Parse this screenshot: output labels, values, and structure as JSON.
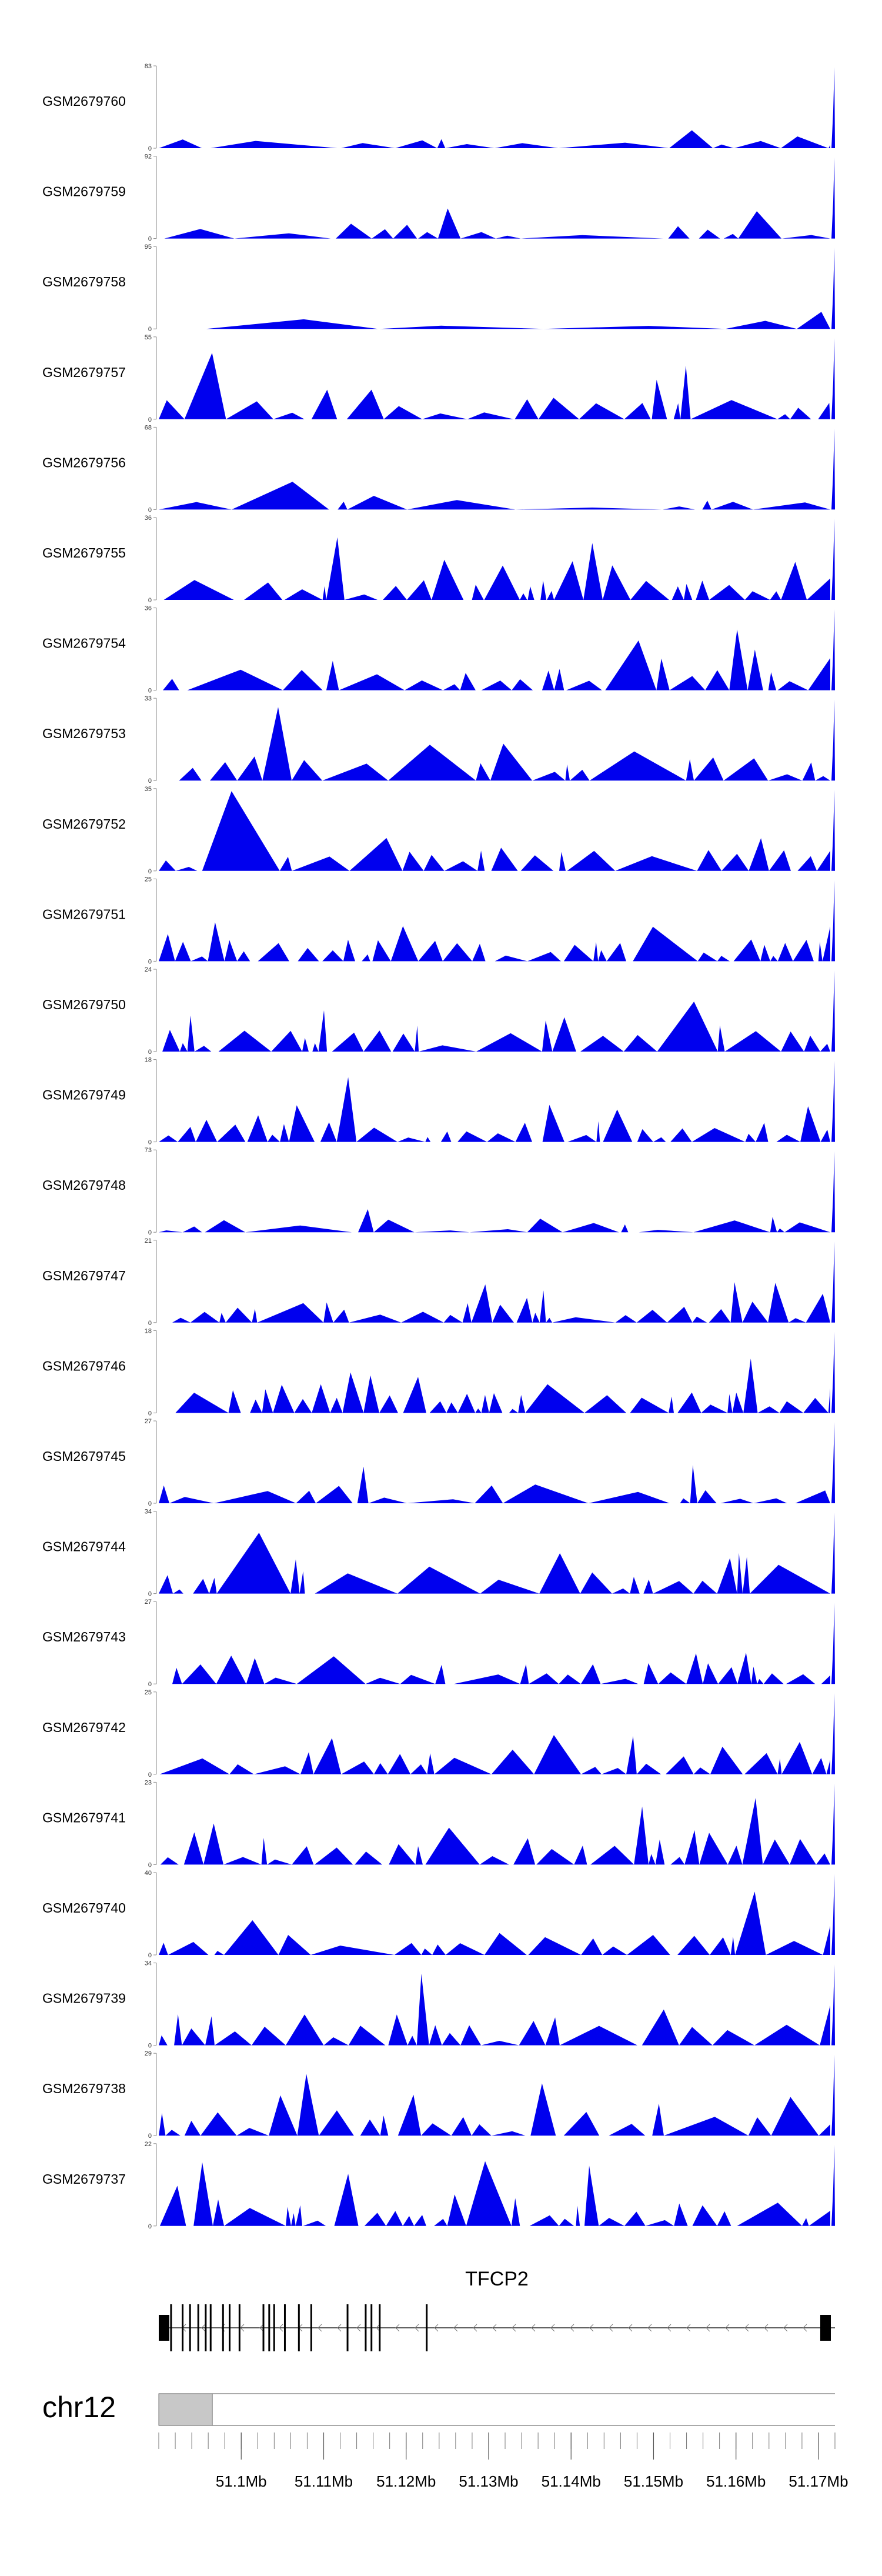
{
  "colors": {
    "signal": "#0000ee",
    "axis": "#888888",
    "gene": "#000000",
    "ideogram_fill": "#c8c8c8",
    "ideogram_edge": "#777777"
  },
  "chart_data": {
    "type": "area",
    "title": "",
    "xlabel": "",
    "ylabel": "",
    "chromosome": "chr12",
    "xlim": [
      51090000,
      51172000
    ],
    "x_ticks": [
      51100000,
      51110000,
      51120000,
      51130000,
      51140000,
      51150000,
      51160000,
      51170000
    ],
    "x_tick_labels": [
      "51.1Mb",
      "51.11Mb",
      "51.12Mb",
      "51.13Mb",
      "51.14Mb",
      "51.15Mb",
      "51.16Mb",
      "51.17Mb"
    ],
    "tracks": [
      {
        "name": "GSM2679760",
        "ymax": 83,
        "seed": 11,
        "density": 0.55,
        "spike": 83,
        "start": 0.0
      },
      {
        "name": "GSM2679759",
        "ymax": 92,
        "seed": 12,
        "density": 0.55,
        "spike": 92,
        "start": 0.0
      },
      {
        "name": "GSM2679758",
        "ymax": 95,
        "seed": 13,
        "density": 0.3,
        "spike": 95,
        "start": 0.07
      },
      {
        "name": "GSM2679757",
        "ymax": 55,
        "seed": 14,
        "density": 0.8,
        "spike": 55,
        "start": 0.0
      },
      {
        "name": "GSM2679756",
        "ymax": 68,
        "seed": 15,
        "density": 0.5,
        "spike": 68,
        "start": 0.0
      },
      {
        "name": "GSM2679755",
        "ymax": 36,
        "seed": 16,
        "density": 0.95,
        "spike": 36,
        "start": 0.0
      },
      {
        "name": "GSM2679754",
        "ymax": 36,
        "seed": 17,
        "density": 0.9,
        "spike": 36,
        "start": 0.0
      },
      {
        "name": "GSM2679753",
        "ymax": 33,
        "seed": 18,
        "density": 0.85,
        "spike": 33,
        "start": 0.03
      },
      {
        "name": "GSM2679752",
        "ymax": 35,
        "seed": 19,
        "density": 0.95,
        "spike": 35,
        "start": 0.0
      },
      {
        "name": "GSM2679751",
        "ymax": 25,
        "seed": 20,
        "density": 1.2,
        "spike": 25,
        "start": 0.0
      },
      {
        "name": "GSM2679750",
        "ymax": 24,
        "seed": 21,
        "density": 1.2,
        "spike": 24,
        "start": 0.0
      },
      {
        "name": "GSM2679749",
        "ymax": 18,
        "seed": 22,
        "density": 1.35,
        "spike": 18,
        "start": 0.0
      },
      {
        "name": "GSM2679748",
        "ymax": 73,
        "seed": 23,
        "density": 0.55,
        "spike": 73,
        "start": 0.0
      },
      {
        "name": "GSM2679747",
        "ymax": 21,
        "seed": 24,
        "density": 1.3,
        "spike": 21,
        "start": 0.02
      },
      {
        "name": "GSM2679746",
        "ymax": 18,
        "seed": 25,
        "density": 1.35,
        "spike": 18,
        "start": 0.02
      },
      {
        "name": "GSM2679745",
        "ymax": 27,
        "seed": 26,
        "density": 1.0,
        "spike": 27,
        "start": 0.0
      },
      {
        "name": "GSM2679744",
        "ymax": 34,
        "seed": 27,
        "density": 0.9,
        "spike": 34,
        "start": 0.0
      },
      {
        "name": "GSM2679743",
        "ymax": 27,
        "seed": 28,
        "density": 1.0,
        "spike": 27,
        "start": 0.02
      },
      {
        "name": "GSM2679742",
        "ymax": 25,
        "seed": 29,
        "density": 1.2,
        "spike": 25,
        "start": 0.0
      },
      {
        "name": "GSM2679741",
        "ymax": 23,
        "seed": 30,
        "density": 1.25,
        "spike": 23,
        "start": 0.0
      },
      {
        "name": "GSM2679740",
        "ymax": 40,
        "seed": 31,
        "density": 0.9,
        "spike": 40,
        "start": 0.0
      },
      {
        "name": "GSM2679739",
        "ymax": 34,
        "seed": 32,
        "density": 0.9,
        "spike": 34,
        "start": 0.0
      },
      {
        "name": "GSM2679738",
        "ymax": 29,
        "seed": 33,
        "density": 1.0,
        "spike": 29,
        "start": 0.0
      },
      {
        "name": "GSM2679737",
        "ymax": 22,
        "seed": 34,
        "density": 1.3,
        "spike": 22,
        "start": 0.0
      }
    ],
    "gene": {
      "name": "TFCP2",
      "strand": "-",
      "start": 51090000,
      "end": 51172000,
      "exons": [
        51090000,
        51091600,
        51093000,
        51093900,
        51094900,
        51095800,
        51096400,
        51097900,
        51098700,
        51099900,
        51102800,
        51103500,
        51104100,
        51105400,
        51107100,
        51108600,
        51113000,
        51115200,
        51115900,
        51116900,
        51122600,
        51171500
      ]
    },
    "ideogram": {
      "highlight_start": 51090000,
      "highlight_end": 51096500
    }
  }
}
